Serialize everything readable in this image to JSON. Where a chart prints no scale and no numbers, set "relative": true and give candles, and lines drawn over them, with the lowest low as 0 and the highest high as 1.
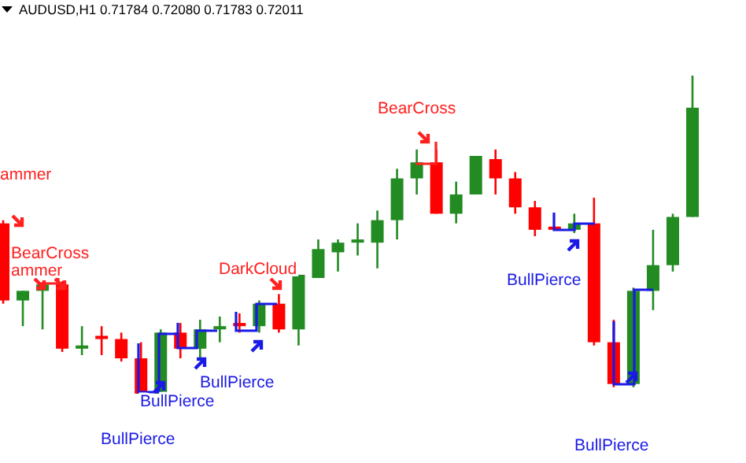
{
  "chart_data": {
    "type": "candlestick",
    "title": "AUDUSD,H1  0.71784 0.72080 0.71783 0.72011",
    "relative": true,
    "categories": [
      null,
      null,
      null,
      null,
      null,
      null,
      null,
      null,
      null,
      null,
      null,
      null,
      null,
      null,
      null,
      null,
      null,
      null,
      null,
      null,
      null,
      null,
      null,
      null,
      null,
      null,
      null,
      null,
      null,
      null,
      null,
      null,
      null,
      null,
      null,
      null
    ],
    "ohlc": [
      [
        0.54,
        0.55,
        0.29,
        0.3
      ],
      [
        0.3,
        0.33,
        0.22,
        0.33
      ],
      [
        0.33,
        0.35,
        0.21,
        0.35
      ],
      [
        0.35,
        0.36,
        0.14,
        0.15
      ],
      [
        0.15,
        0.22,
        0.13,
        0.16
      ],
      [
        0.19,
        0.22,
        0.13,
        0.18
      ],
      [
        0.18,
        0.2,
        0.11,
        0.12
      ],
      [
        0.12,
        0.17,
        0.01,
        0.01
      ],
      [
        0.01,
        0.21,
        0,
        0.2
      ],
      [
        0.2,
        0.23,
        0.12,
        0.15
      ],
      [
        0.15,
        0.24,
        0.12,
        0.21
      ],
      [
        0.21,
        0.25,
        0.17,
        0.22
      ],
      [
        0.23,
        0.26,
        0.2,
        0.22
      ],
      [
        0.22,
        0.3,
        0.2,
        0.29
      ],
      [
        0.29,
        0.32,
        0.2,
        0.21
      ],
      [
        0.21,
        0.38,
        0.16,
        0.38
      ],
      [
        0.37,
        0.49,
        0.37,
        0.46
      ],
      [
        0.45,
        0.49,
        0.39,
        0.48
      ],
      [
        0.48,
        0.54,
        0.44,
        0.49
      ],
      [
        0.48,
        0.58,
        0.4,
        0.55
      ],
      [
        0.55,
        0.71,
        0.49,
        0.68
      ],
      [
        0.68,
        0.77,
        0.63,
        0.73
      ],
      [
        0.73,
        0.77,
        0.57,
        0.57
      ],
      [
        0.57,
        0.67,
        0.54,
        0.63
      ],
      [
        0.63,
        0.75,
        0.63,
        0.75
      ],
      [
        0.74,
        0.77,
        0.63,
        0.68
      ],
      [
        0.68,
        0.7,
        0.57,
        0.59
      ],
      [
        0.59,
        0.61,
        0.5,
        0.52
      ],
      [
        0.53,
        0.53,
        0.52,
        0.52
      ],
      [
        0.52,
        0.57,
        0.51,
        0.54
      ],
      [
        0.54,
        0.62,
        0.16,
        0.17
      ],
      [
        0.17,
        0.24,
        0.03,
        0.04
      ],
      [
        0.04,
        0.34,
        0.03,
        0.33
      ],
      [
        0.33,
        0.52,
        0.27,
        0.41
      ],
      [
        0.41,
        0.57,
        0.39,
        0.56
      ],
      [
        0.56,
        1,
        0.56,
        0.9
      ]
    ],
    "colors": [
      "#ff0000",
      "#228b22",
      "#228b22",
      "#ff0000",
      "#228b22",
      "#ff0000",
      "#ff0000",
      "#ff0000",
      "#228b22",
      "#ff0000",
      "#228b22",
      "#228b22",
      "#ff0000",
      "#228b22",
      "#ff0000",
      "#228b22",
      "#228b22",
      "#228b22",
      "#228b22",
      "#228b22",
      "#228b22",
      "#228b22",
      "#ff0000",
      "#228b22",
      "#228b22",
      "#ff0000",
      "#ff0000",
      "#ff0000",
      "#ff0000",
      "#228b22",
      "#ff0000",
      "#ff0000",
      "#228b22",
      "#228b22",
      "#228b22",
      "#228b22"
    ],
    "annotations": [
      "ammer",
      "BearCross",
      "ammer",
      "DarkCloud",
      "BullPierce",
      "BullPierce",
      "BullPierce",
      "BearCross",
      "BullPierce",
      "BullPierce"
    ]
  }
}
